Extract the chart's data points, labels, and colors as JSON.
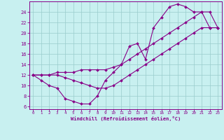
{
  "bg_color": "#c8f0f0",
  "line_color": "#880088",
  "grid_color": "#99cccc",
  "xlim_min": -0.5,
  "xlim_max": 23.5,
  "ylim_min": 5.5,
  "ylim_max": 26.0,
  "xticks": [
    0,
    1,
    2,
    3,
    4,
    5,
    6,
    7,
    8,
    9,
    10,
    11,
    12,
    13,
    14,
    15,
    16,
    17,
    18,
    19,
    20,
    21,
    22,
    23
  ],
  "yticks": [
    6,
    8,
    10,
    12,
    14,
    16,
    18,
    20,
    22,
    24
  ],
  "xlabel": "Windchill (Refroidissement éolien,°C)",
  "curve1_x": [
    0,
    1,
    2,
    3,
    4,
    5,
    6,
    7,
    8,
    9,
    10,
    11,
    12,
    13,
    14,
    15,
    16,
    17,
    18,
    19,
    20,
    21,
    22,
    23
  ],
  "curve1_y": [
    12,
    11,
    10,
    9.5,
    7.5,
    7,
    6.5,
    6.5,
    8,
    11,
    12.5,
    14,
    17.5,
    18,
    15,
    21,
    23,
    25,
    25.5,
    25,
    24,
    24,
    21,
    21
  ],
  "curve2_x": [
    0,
    1,
    2,
    3,
    4,
    5,
    6,
    7,
    8,
    9,
    10,
    11,
    12,
    13,
    14,
    15,
    16,
    17,
    18,
    19,
    20,
    21,
    22,
    23
  ],
  "curve2_y": [
    12,
    12,
    12,
    12.5,
    12.5,
    12.5,
    13,
    13,
    13,
    13,
    13.5,
    14,
    15,
    16,
    17,
    18,
    19,
    20,
    21,
    22,
    23,
    24,
    24,
    21
  ],
  "curve3_x": [
    0,
    1,
    2,
    3,
    4,
    5,
    6,
    7,
    8,
    9,
    10,
    11,
    12,
    13,
    14,
    15,
    16,
    17,
    18,
    19,
    20,
    21,
    22,
    23
  ],
  "curve3_y": [
    12,
    12,
    12,
    12,
    11.5,
    11,
    10.5,
    10,
    9.5,
    9.5,
    10,
    11,
    12,
    13,
    14,
    15,
    16,
    17,
    18,
    19,
    20,
    21,
    21,
    21
  ]
}
